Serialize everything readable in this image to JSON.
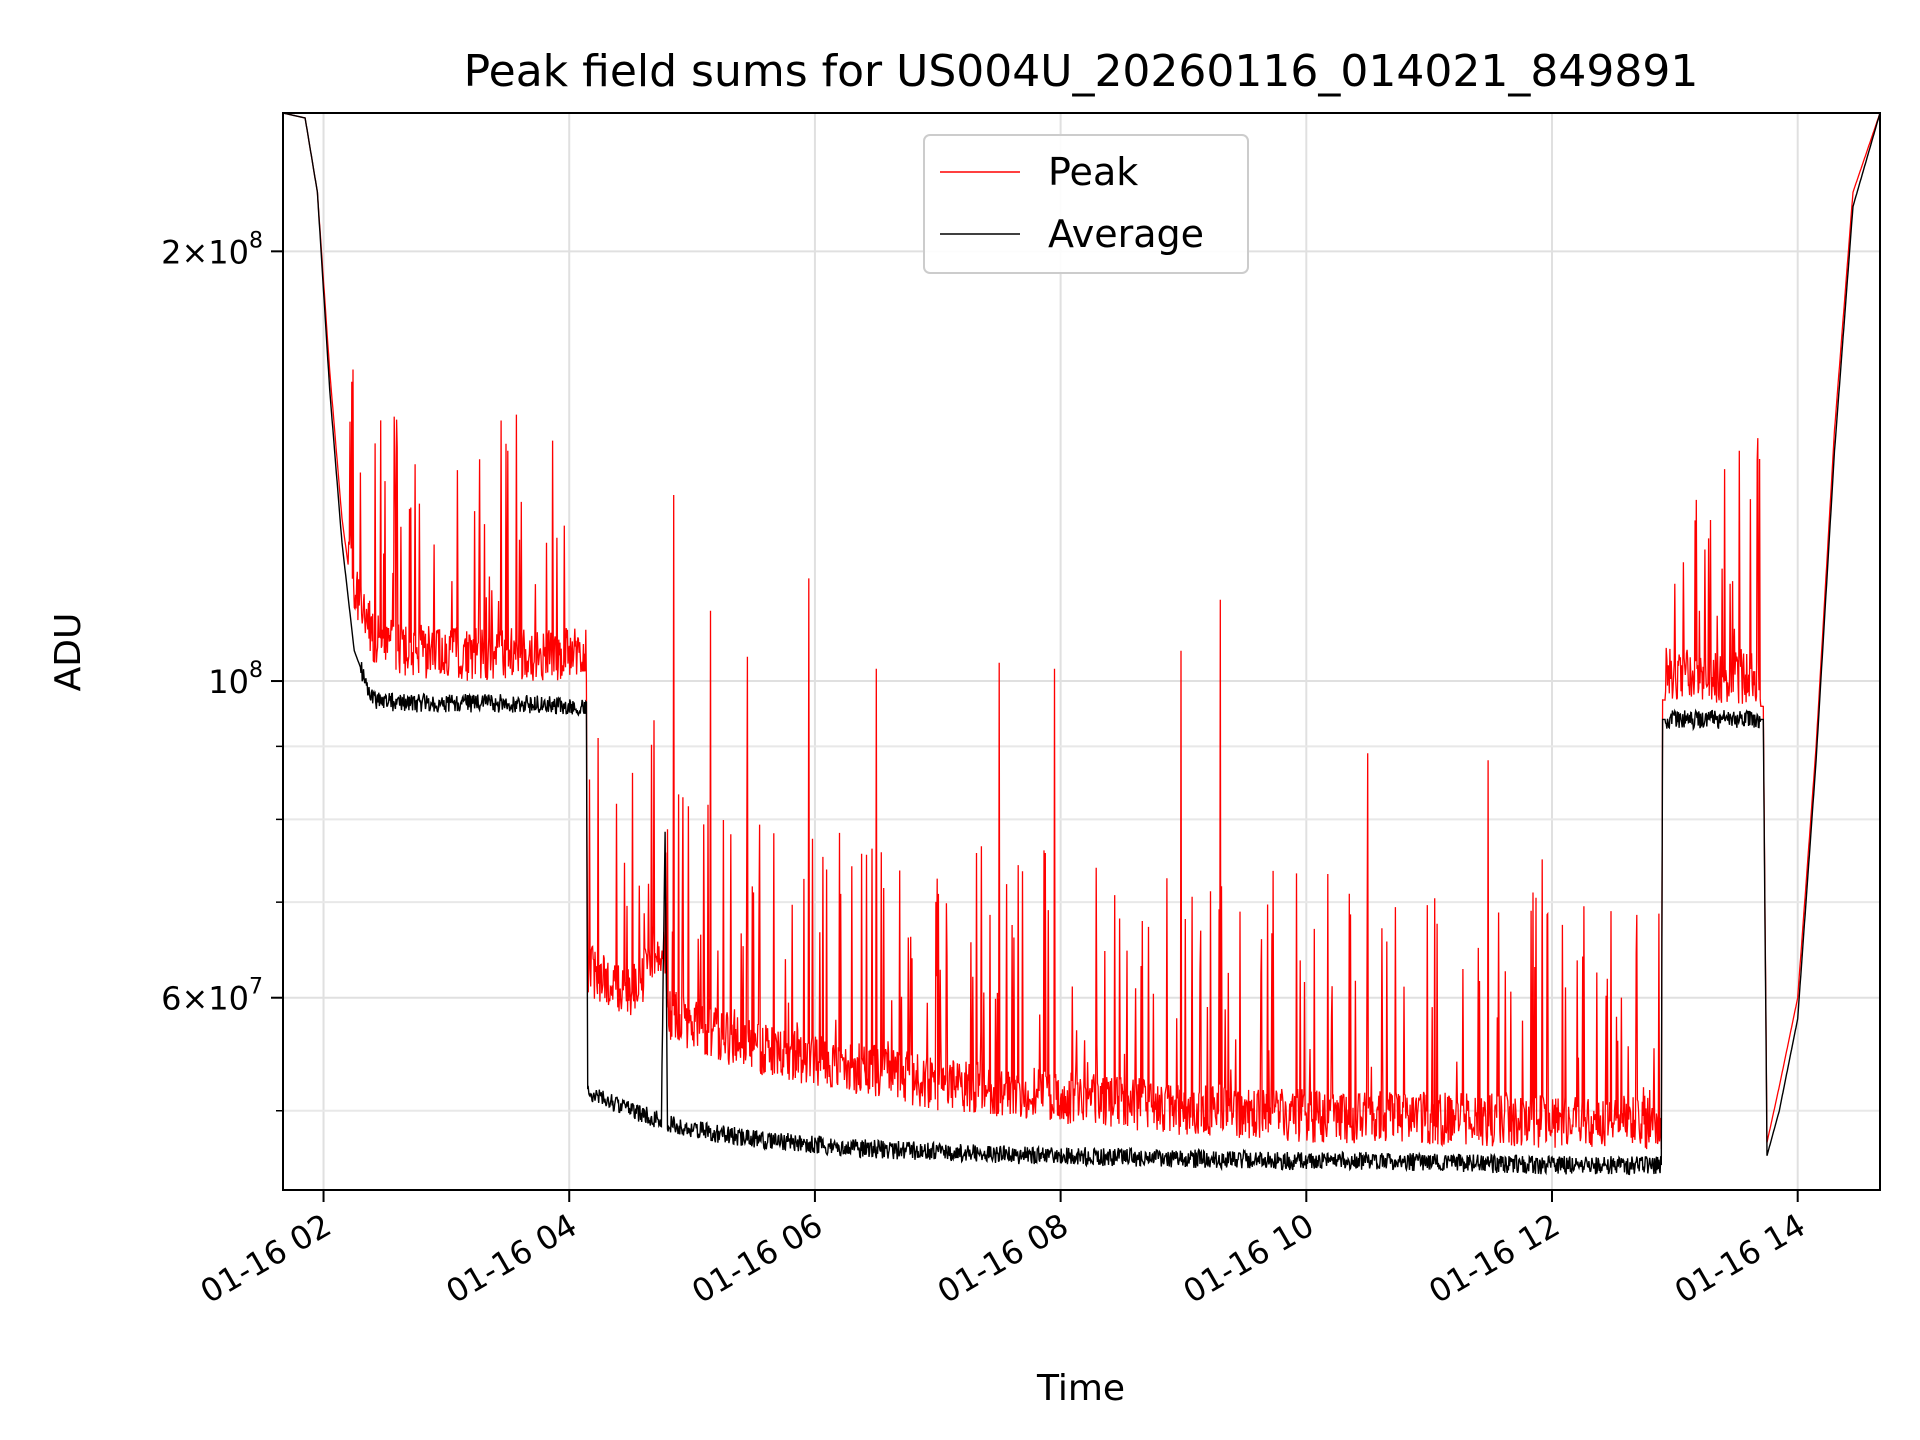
{
  "chart_data": {
    "type": "line",
    "title": "Peak field sums for US004U_20260116_014021_849891",
    "xlabel": "Time",
    "ylabel": "ADU",
    "x_tick_labels": [
      "01-16 02",
      "01-16 04",
      "01-16 06",
      "01-16 08",
      "01-16 10",
      "01-16 12",
      "01-16 14"
    ],
    "x_tick_hours": [
      2,
      4,
      6,
      8,
      10,
      12,
      14
    ],
    "xlim_hours": [
      1.67,
      14.67
    ],
    "y_scale": "log",
    "ylim": [
      44000000,
      250000000
    ],
    "y_major_ticks": [
      {
        "value": 200000000,
        "mantissa": "2",
        "base": "10",
        "exp": "8"
      },
      {
        "value": 100000000,
        "mantissa": "",
        "base": "10",
        "exp": "8"
      },
      {
        "value": 60000000,
        "mantissa": "6",
        "base": "10",
        "exp": "7"
      }
    ],
    "y_minor_ticks": [
      50000000,
      70000000,
      80000000,
      90000000
    ],
    "grid": true,
    "legend_position": "upper center",
    "series": [
      {
        "name": "Peak",
        "color": "#ff0000",
        "x_hours": [
          1.67,
          1.85,
          1.95,
          2.05,
          2.15,
          2.25,
          2.4,
          2.6,
          3.0,
          3.5,
          4.0,
          4.14,
          4.15,
          4.5,
          4.78,
          4.8,
          5.0,
          5.5,
          6.0,
          6.5,
          7.0,
          7.5,
          8.0,
          8.5,
          9.0,
          9.5,
          10.0,
          10.5,
          11.0,
          11.5,
          12.0,
          12.5,
          12.89,
          12.9,
          13.3,
          13.72,
          13.75,
          13.85,
          14.0,
          14.15,
          14.3,
          14.45,
          14.67
        ],
        "y": [
          250000000,
          248000000,
          220000000,
          165000000,
          130000000,
          112000000,
          103000000,
          101000000,
          100000000,
          100000000,
          100000000,
          100000000,
          60000000,
          58000000,
          62000000,
          56000000,
          55000000,
          53000000,
          52000000,
          51000000,
          50000000,
          49500000,
          49000000,
          48500000,
          48000000,
          47800000,
          47500000,
          47400000,
          47300000,
          47200000,
          47000000,
          47000000,
          47000000,
          97000000,
          96500000,
          96000000,
          47500000,
          52000000,
          60000000,
          90000000,
          150000000,
          220000000,
          250000000
        ],
        "spike_peaks": [
          {
            "x": 2.3,
            "y": 140000000
          },
          {
            "x": 2.7,
            "y": 132000000
          },
          {
            "x": 3.5,
            "y": 145000000
          },
          {
            "x": 3.9,
            "y": 126000000
          },
          {
            "x": 4.85,
            "y": 135000000
          },
          {
            "x": 5.15,
            "y": 112000000
          },
          {
            "x": 5.45,
            "y": 104000000
          },
          {
            "x": 5.95,
            "y": 118000000
          },
          {
            "x": 6.5,
            "y": 102000000
          },
          {
            "x": 7.5,
            "y": 103000000
          },
          {
            "x": 7.95,
            "y": 102000000
          },
          {
            "x": 8.98,
            "y": 105000000
          },
          {
            "x": 9.3,
            "y": 114000000
          },
          {
            "x": 10.5,
            "y": 89000000
          },
          {
            "x": 11.48,
            "y": 88000000
          },
          {
            "x": 11.92,
            "y": 75000000
          },
          {
            "x": 12.48,
            "y": 69000000
          },
          {
            "x": 13.2,
            "y": 112000000
          },
          {
            "x": 13.45,
            "y": 117000000
          }
        ]
      },
      {
        "name": "Average",
        "color": "#000000",
        "x_hours": [
          1.67,
          1.85,
          1.95,
          2.05,
          2.15,
          2.25,
          2.4,
          2.6,
          3.0,
          3.5,
          4.0,
          4.14,
          4.15,
          4.5,
          4.75,
          4.78,
          4.8,
          5.0,
          5.5,
          6.0,
          6.5,
          7.0,
          7.5,
          8.0,
          8.5,
          9.0,
          9.5,
          10.0,
          10.5,
          11.0,
          11.5,
          12.0,
          12.5,
          12.89,
          12.9,
          13.3,
          13.72,
          13.75,
          13.85,
          14.0,
          14.15,
          14.3,
          14.45,
          14.67
        ],
        "y": [
          250000000,
          248000000,
          220000000,
          160000000,
          125000000,
          105000000,
          97000000,
          96500000,
          96500000,
          96500000,
          96000000,
          96000000,
          51500000,
          50000000,
          49200000,
          79000000,
          49000000,
          48500000,
          47800000,
          47300000,
          47000000,
          46800000,
          46600000,
          46500000,
          46400000,
          46300000,
          46200000,
          46100000,
          46100000,
          46000000,
          45900000,
          45800000,
          45800000,
          45800000,
          94000000,
          94000000,
          94000000,
          46500000,
          50000000,
          58000000,
          88000000,
          145000000,
          215000000,
          250000000
        ]
      }
    ]
  }
}
